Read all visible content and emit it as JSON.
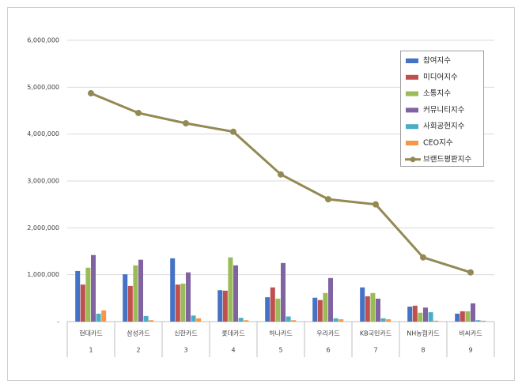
{
  "chart_data": {
    "type": "bar",
    "categories": [
      "현대카드",
      "삼성카드",
      "신한카드",
      "롯데카드",
      "하나카드",
      "우리카드",
      "KB국민카드",
      "NH농협카드",
      "비씨카드"
    ],
    "category_numbers": [
      "1",
      "2",
      "3",
      "4",
      "5",
      "6",
      "7",
      "8",
      "9"
    ],
    "series": [
      {
        "name": "참여지수",
        "color": "#4472c4",
        "values": [
          1080000,
          1010000,
          1350000,
          670000,
          520000,
          510000,
          730000,
          320000,
          170000
        ]
      },
      {
        "name": "미디어지수",
        "color": "#c0504d",
        "values": [
          790000,
          760000,
          790000,
          660000,
          730000,
          460000,
          540000,
          340000,
          220000
        ]
      },
      {
        "name": "소통지수",
        "color": "#9bbb59",
        "values": [
          1150000,
          1200000,
          810000,
          1370000,
          490000,
          610000,
          610000,
          190000,
          220000
        ]
      },
      {
        "name": "커뮤니티지수",
        "color": "#8064a2",
        "values": [
          1420000,
          1320000,
          1050000,
          1200000,
          1250000,
          930000,
          490000,
          300000,
          390000
        ]
      },
      {
        "name": "사회공헌지수",
        "color": "#4bacc6",
        "values": [
          170000,
          120000,
          130000,
          80000,
          110000,
          70000,
          70000,
          200000,
          30000
        ]
      },
      {
        "name": "CEO지수",
        "color": "#f79646",
        "values": [
          240000,
          30000,
          70000,
          30000,
          30000,
          50000,
          50000,
          20000,
          20000
        ]
      },
      {
        "name": "브랜드평판지수",
        "color": "#938953",
        "type": "line",
        "values": [
          4870000,
          4450000,
          4230000,
          4050000,
          3140000,
          2610000,
          2500000,
          1370000,
          1050000
        ]
      }
    ],
    "ylim": [
      0,
      6000000
    ],
    "yticks": [
      {
        "value": 0,
        "label": "-"
      },
      {
        "value": 1000000,
        "label": "1,000,000"
      },
      {
        "value": 2000000,
        "label": "2,000,000"
      },
      {
        "value": 3000000,
        "label": "3,000,000"
      },
      {
        "value": 4000000,
        "label": "4,000,000"
      },
      {
        "value": 5000000,
        "label": "5,000,000"
      },
      {
        "value": 6000000,
        "label": "6,000,000"
      }
    ],
    "grid": true,
    "legend": "top-right"
  }
}
